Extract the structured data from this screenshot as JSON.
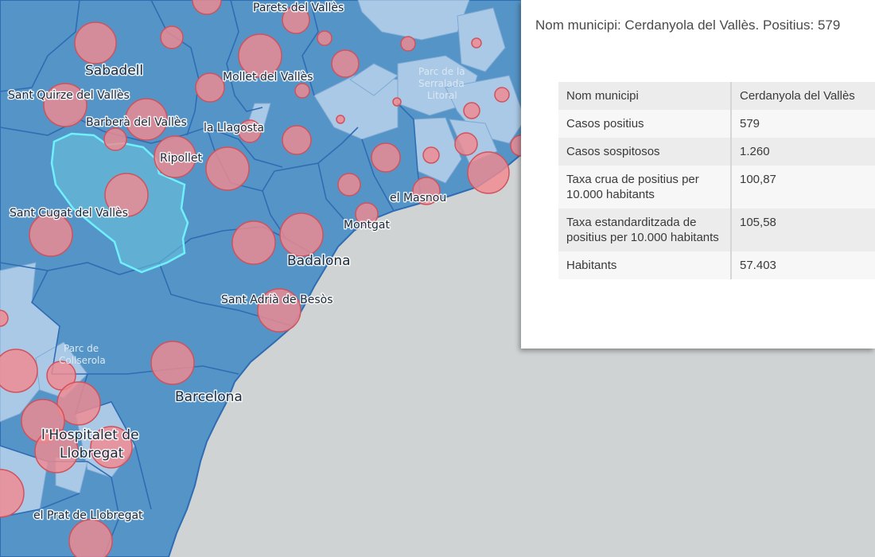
{
  "map": {
    "colors": {
      "land": "#5594c6",
      "land_light": "#aac9e6",
      "sea": "#d0d3d4",
      "boundary": "#2e6db4",
      "bubble_fill": "#f08a90",
      "bubble_stroke": "#d0525c",
      "highlight": "#6ff0ff"
    },
    "labels": {
      "sabadell": "Sabadell",
      "parets": "Parets del Vallès",
      "sant_quirze": "Sant Quirze del Vallès",
      "mollet": "Mollet del Vallès",
      "barbera": "Barberà del Vallès",
      "llagosta": "la Llagosta",
      "ripollet": "Ripollet",
      "masnou": "el Masnou",
      "sant_cugat": "Sant Cugat del Vallès",
      "montgat": "Montgat",
      "badalona": "Badalona",
      "sant_adria": "Sant Adrià de Besòs",
      "barcelona": "Barcelona",
      "hospitalet_1": "l'Hospitalet de",
      "hospitalet_2": "Llobregat",
      "prat": "el Prat de Llobregat",
      "park_serralada_1": "Parc de la",
      "park_serralada_2": "Serralada",
      "park_serralada_3": "Litoral",
      "park_collserola_1": "Parc de",
      "park_collserola_2": "Collserola"
    }
  },
  "popup": {
    "title": "Nom municipi: Cerdanyola del Vallès. Positius: 579",
    "rows": [
      {
        "key": "Nom municipi",
        "value": "Cerdanyola del Vallès"
      },
      {
        "key": "Casos positius",
        "value": "579"
      },
      {
        "key": "Casos sospitosos",
        "value": "1.260"
      },
      {
        "key": "Taxa crua de positius per 10.000 habitants",
        "value": "100,87"
      },
      {
        "key": "Taxa estandarditzada de positius per 10.000 habitants",
        "value": "105,58"
      },
      {
        "key": "Habitants",
        "value": "57.403"
      }
    ]
  }
}
